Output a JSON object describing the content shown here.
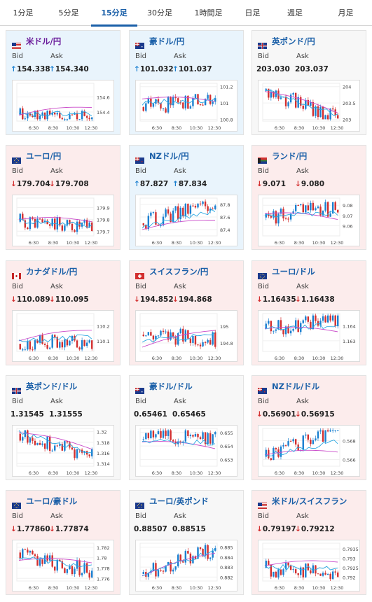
{
  "tabs": [
    {
      "label": "1分足",
      "active": false
    },
    {
      "label": "5分足",
      "active": false
    },
    {
      "label": "15分足",
      "active": true
    },
    {
      "label": "30分足",
      "active": false
    },
    {
      "label": "1時間足",
      "active": false
    },
    {
      "label": "日足",
      "active": false
    },
    {
      "label": "週足",
      "active": false
    },
    {
      "label": "月足",
      "active": false
    }
  ],
  "labels": {
    "bid": "Bid",
    "ask": "Ask"
  },
  "x_ticks": [
    "6:30",
    "8:30",
    "10:30",
    "12:30"
  ],
  "colors": {
    "up_candle": "#1a7fd0",
    "down_candle": "#d32f2f",
    "ma_short": "#29a7e1",
    "ma_long": "#c94bc9",
    "accent": "#1a5fa8"
  },
  "cards": [
    {
      "name": "米ドル/円",
      "flag": "us-flag-icon",
      "trend": "up",
      "bid": "154.338",
      "ask": "154.340",
      "bid_dir": "up",
      "ask_dir": "up",
      "focus": true,
      "chart_data": {
        "type": "candlestick",
        "y_ticks": [
          "154.6",
          "154.4"
        ],
        "ylim": [
          154.28,
          154.78
        ],
        "open": 154.36,
        "close": 154.3,
        "ma_start": 154.36,
        "ma_end": 154.46,
        "seed": 11
      }
    },
    {
      "name": "豪ドル/円",
      "flag": "au-flag-icon",
      "trend": "up",
      "bid": "101.032",
      "ask": "101.037",
      "bid_dir": "up",
      "ask_dir": "up",
      "chart_data": {
        "type": "candlestick",
        "y_ticks": [
          "101.2",
          "101",
          "100.8"
        ],
        "ylim": [
          100.78,
          101.24
        ],
        "open": 100.95,
        "close": 101.05,
        "ma_start": 101.05,
        "ma_end": 101.02,
        "seed": 21
      }
    },
    {
      "name": "英ポンド/円",
      "flag": "gb-flag-icon",
      "trend": "flat",
      "bid": "203.030",
      "ask": "203.037",
      "bid_dir": "none",
      "ask_dir": "none",
      "chart_data": {
        "type": "candlestick",
        "y_ticks": [
          "204",
          "203.5",
          "203"
        ],
        "ylim": [
          202.95,
          204.1
        ],
        "open": 203.9,
        "close": 203.05,
        "ma_start": 203.85,
        "ma_end": 203.2,
        "seed": 31
      }
    },
    {
      "name": "ユーロ/円",
      "flag": "eu-flag-icon",
      "trend": "down",
      "bid": "179.704",
      "ask": "179.708",
      "bid_dir": "down",
      "ask_dir": "down",
      "chart_data": {
        "type": "candlestick",
        "y_ticks": [
          "179.9",
          "179.8",
          "179.7"
        ],
        "ylim": [
          179.66,
          179.98
        ],
        "open": 179.78,
        "close": 179.72,
        "ma_start": 179.8,
        "ma_end": 179.78,
        "seed": 41
      }
    },
    {
      "name": "NZドル/円",
      "flag": "nz-flag-icon",
      "trend": "up",
      "bid": "87.827",
      "ask": "87.834",
      "bid_dir": "up",
      "ask_dir": "up",
      "chart_data": {
        "type": "candlestick",
        "y_ticks": [
          "87.8",
          "87.6",
          "87.4"
        ],
        "ylim": [
          87.3,
          87.9
        ],
        "open": 87.5,
        "close": 87.84,
        "ma_start": 87.4,
        "ma_end": 87.55,
        "seed": 51
      }
    },
    {
      "name": "ランド/円",
      "flag": "za-flag-icon",
      "trend": "down",
      "bid": "9.071",
      "ask": "9.080",
      "bid_dir": "down",
      "ask_dir": "down",
      "chart_data": {
        "type": "candlestick",
        "y_ticks": [
          "9.08",
          "9.07",
          "9.06"
        ],
        "ylim": [
          9.05,
          9.087
        ],
        "open": 9.068,
        "close": 9.078,
        "ma_start": 9.072,
        "ma_end": 9.066,
        "seed": 61
      }
    },
    {
      "name": "カナダドル/円",
      "flag": "ca-flag-icon",
      "trend": "down",
      "bid": "110.089",
      "ask": "110.095",
      "bid_dir": "down",
      "ask_dir": "down",
      "chart_data": {
        "type": "candlestick",
        "y_ticks": [
          "110.2",
          "110.1"
        ],
        "ylim": [
          110.03,
          110.28
        ],
        "open": 110.08,
        "close": 110.09,
        "ma_start": 110.1,
        "ma_end": 110.17,
        "seed": 71
      }
    },
    {
      "name": "スイスフラン/円",
      "flag": "ch-flag-icon",
      "trend": "down",
      "bid": "194.852",
      "ask": "194.868",
      "bid_dir": "down",
      "ask_dir": "down",
      "chart_data": {
        "type": "candlestick",
        "y_ticks": [
          "195",
          "194.8"
        ],
        "ylim": [
          194.7,
          195.15
        ],
        "open": 194.9,
        "close": 194.85,
        "ma_start": 194.75,
        "ma_end": 194.95,
        "seed": 81
      }
    },
    {
      "name": "ユーロ/ドル",
      "flag": "eu-flag-icon",
      "trend": "down",
      "bid": "1.16435",
      "ask": "1.16438",
      "bid_dir": "down",
      "ask_dir": "down",
      "chart_data": {
        "type": "candlestick",
        "y_ticks": [
          "1.164",
          "1.163"
        ],
        "ylim": [
          1.1623,
          1.1648
        ],
        "open": 1.1638,
        "close": 1.1644,
        "ma_start": 1.1638,
        "ma_end": 1.1636,
        "seed": 91
      }
    },
    {
      "name": "英ポンド/ドル",
      "flag": "gb-flag-icon",
      "trend": "flat",
      "bid": "1.31545",
      "ask": "1.31555",
      "bid_dir": "none",
      "ask_dir": "none",
      "chart_data": {
        "type": "candlestick",
        "y_ticks": [
          "1.32",
          "1.318",
          "1.316",
          "1.314"
        ],
        "ylim": [
          1.3135,
          1.3206
        ],
        "open": 1.3196,
        "close": 1.3156,
        "ma_start": 1.3198,
        "ma_end": 1.3167,
        "seed": 101
      }
    },
    {
      "name": "豪ドル/ドル",
      "flag": "au-flag-icon",
      "trend": "flat",
      "bid": "0.65461",
      "ask": "0.65465",
      "bid_dir": "none",
      "ask_dir": "none",
      "chart_data": {
        "type": "candlestick",
        "y_ticks": [
          "0.655",
          "0.654",
          "0.653"
        ],
        "ylim": [
          0.6525,
          0.6553
        ],
        "open": 0.6545,
        "close": 0.6547,
        "ma_start": 0.6543,
        "ma_end": 0.6538,
        "seed": 111
      }
    },
    {
      "name": "NZドル/ドル",
      "flag": "nz-flag-icon",
      "trend": "down",
      "bid": "0.56901",
      "ask": "0.56915",
      "bid_dir": "down",
      "ask_dir": "down",
      "chart_data": {
        "type": "candlestick",
        "y_ticks": [
          "0.568",
          "0.566"
        ],
        "ylim": [
          0.5653,
          0.5693
        ],
        "open": 0.5663,
        "close": 0.569,
        "ma_start": 0.5665,
        "ma_end": 0.5668,
        "seed": 121
      }
    },
    {
      "name": "ユーロ/豪ドル",
      "flag": "eu-flag-icon",
      "trend": "down",
      "bid": "1.77860",
      "ask": "1.77874",
      "bid_dir": "down",
      "ask_dir": "down",
      "chart_data": {
        "type": "candlestick",
        "y_ticks": [
          "1.782",
          "1.78",
          "1.778",
          "1.776"
        ],
        "ylim": [
          1.7755,
          1.7828
        ],
        "open": 1.781,
        "close": 1.7772,
        "ma_start": 1.7795,
        "ma_end": 1.779,
        "seed": 131
      }
    },
    {
      "name": "ユーロ/英ポンド",
      "flag": "eu-flag-icon",
      "trend": "flat",
      "bid": "0.88507",
      "ask": "0.88515",
      "bid_dir": "none",
      "ask_dir": "none",
      "chart_data": {
        "type": "candlestick",
        "y_ticks": [
          "0.885",
          "0.884",
          "0.883",
          "0.882"
        ],
        "ylim": [
          0.8816,
          0.8854
        ],
        "open": 0.8823,
        "close": 0.8849,
        "ma_start": 0.8821,
        "ma_end": 0.8844,
        "seed": 141
      }
    },
    {
      "name": "米ドル/スイスフラン",
      "flag": "us-flag-icon",
      "trend": "down",
      "bid": "0.79197",
      "ask": "0.79212",
      "bid_dir": "down",
      "ask_dir": "down",
      "chart_data": {
        "type": "candlestick",
        "y_ticks": [
          "0.7935",
          "0.793",
          "0.7925",
          "0.792"
        ],
        "ylim": [
          0.7918,
          0.7938
        ],
        "open": 0.7925,
        "close": 0.7921,
        "ma_start": 0.7926,
        "ma_end": 0.7928,
        "seed": 151
      }
    }
  ]
}
